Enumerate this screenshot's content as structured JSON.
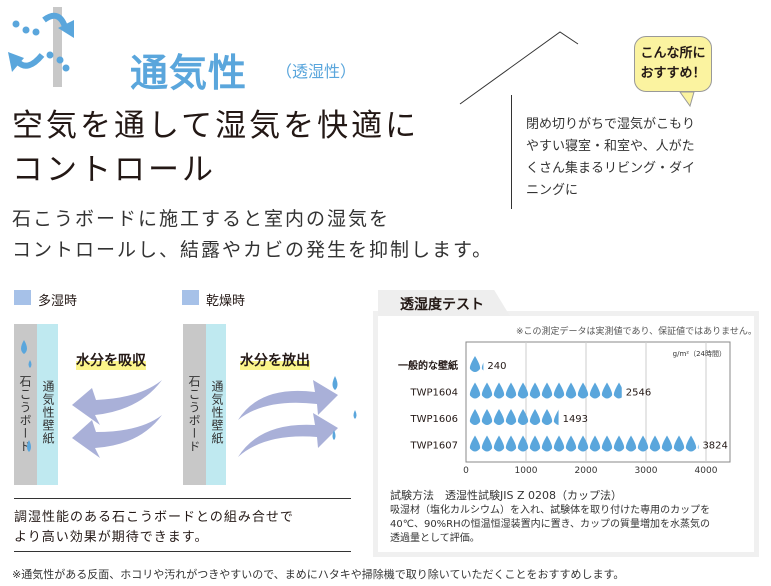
{
  "header": {
    "title": "通気性",
    "subtitle": "（透湿性）",
    "headline": [
      "空気を通して湿気を快適に",
      "コントロール"
    ],
    "lead": [
      "石こうボードに施工すると室内の湿気を",
      "コントロールし、結露やカビの発生を抑制します。"
    ]
  },
  "callout": {
    "bubble": [
      "こんな所に",
      "おすすめ！"
    ],
    "text": "閉め切りがちで湿気がこもりやすい寝室・和室や、人がたくさん集まるリビング・ダイニングに"
  },
  "diagram": {
    "humid": {
      "label": "多湿時",
      "action": "水分を吸収"
    },
    "dry": {
      "label": "乾燥時",
      "action": "水分を放出"
    },
    "board": "石こうボード",
    "wallpaper": "通気性壁紙",
    "summary": [
      "調湿性能のある石こうボードとの組み合せで",
      "より高い効果が期待できます。"
    ]
  },
  "test": {
    "tab": "透湿度テスト",
    "disclaimer": "※この測定データは実測値であり、保証値ではありません。",
    "method_title": "試験方法　透湿性試験JIS Z 0208（カップ法）",
    "method_text": [
      "吸湿材（塩化カルシウム）を入れ、試験体を取り付けた専用のカップを",
      "40℃、90%RHの恒温恒湿装置内に置き、カップの質量増加を水蒸気の",
      "透過量として評価。"
    ]
  },
  "chart_data": {
    "type": "bar",
    "unit": "g/m²（24時間）",
    "categories": [
      "一般的な壁紙",
      "TWP1604",
      "TWP1606",
      "TWP1607"
    ],
    "values": [
      240,
      2546,
      1493,
      3824
    ],
    "xlim": [
      0,
      4000
    ],
    "xticks": [
      "0",
      "1000",
      "2000",
      "3000",
      "4000"
    ],
    "grid": true,
    "mark": "water-drop",
    "color": "#5aa6dc"
  },
  "footer": "※通気性がある反面、ホコリや汚れがつきやすいので、まめにハタキや掃除機で取り除いていただくことをおすすめします。"
}
